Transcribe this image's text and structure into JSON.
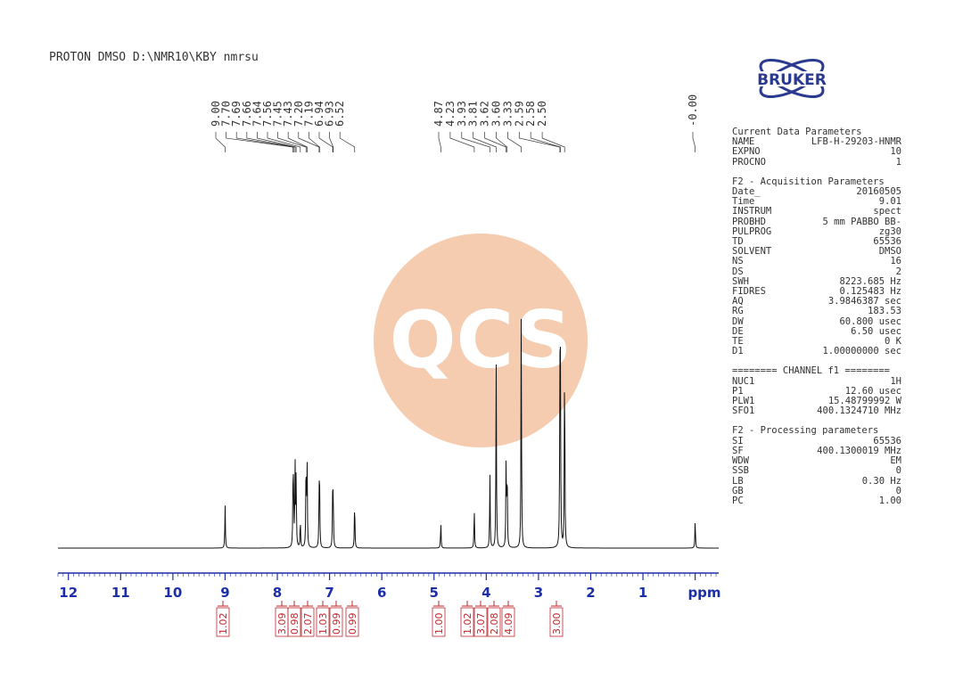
{
  "header": {
    "title": "PROTON DMSO D:\\NMR10\\KBY nmrsu"
  },
  "watermark": {
    "text": "QCS",
    "color": "#f4c7a6"
  },
  "logo": {
    "text": "BRUKER",
    "color": "#2a3a8f"
  },
  "chart_data": {
    "type": "line",
    "title": "",
    "xlabel": "ppm",
    "ylabel": "",
    "xlim": [
      12.2,
      -0.45
    ],
    "x_ticks": [
      12,
      11,
      10,
      9,
      8,
      7,
      6,
      5,
      4,
      3,
      2,
      1
    ],
    "tick_color": "#1b2fa8",
    "integral_color": "#c0282d",
    "peaks": [
      {
        "ppm": 9.0,
        "height": 0.15
      },
      {
        "ppm": 7.7,
        "height": 0.18
      },
      {
        "ppm": 7.69,
        "height": 0.21
      },
      {
        "ppm": 7.66,
        "height": 0.28
      },
      {
        "ppm": 7.64,
        "height": 0.25
      },
      {
        "ppm": 7.56,
        "height": 0.1
      },
      {
        "ppm": 7.45,
        "height": 0.32
      },
      {
        "ppm": 7.43,
        "height": 0.29
      },
      {
        "ppm": 7.2,
        "height": 0.19
      },
      {
        "ppm": 7.19,
        "height": 0.17
      },
      {
        "ppm": 6.94,
        "height": 0.18
      },
      {
        "ppm": 6.93,
        "height": 0.16
      },
      {
        "ppm": 6.52,
        "height": 0.17
      },
      {
        "ppm": 4.87,
        "height": 0.09
      },
      {
        "ppm": 4.23,
        "height": 0.14
      },
      {
        "ppm": 3.93,
        "height": 0.26
      },
      {
        "ppm": 3.81,
        "height": 0.64
      },
      {
        "ppm": 3.62,
        "height": 0.3
      },
      {
        "ppm": 3.6,
        "height": 0.28
      },
      {
        "ppm": 3.33,
        "height": 0.83
      },
      {
        "ppm": 2.59,
        "height": 0.52
      },
      {
        "ppm": 2.58,
        "height": 0.55
      },
      {
        "ppm": 2.5,
        "height": 0.7
      },
      {
        "ppm": 0.0,
        "height": 0.1
      }
    ],
    "peak_labels": [
      "9.00",
      "7.70",
      "7.69",
      "7.66",
      "7.64",
      "7.56",
      "7.45",
      "7.43",
      "7.20",
      "7.19",
      "6.94",
      "6.93",
      "6.52",
      "4.87",
      "4.23",
      "3.93",
      "3.81",
      "3.62",
      "3.60",
      "3.33",
      "2.59",
      "2.58",
      "2.50",
      "-0.00"
    ],
    "integrals": [
      {
        "ppm": 9.0,
        "value": "1.02"
      },
      {
        "ppm": 7.68,
        "value": "3.09"
      },
      {
        "ppm": 7.56,
        "value": "0.98"
      },
      {
        "ppm": 7.44,
        "value": "2.07"
      },
      {
        "ppm": 7.2,
        "value": "1.03"
      },
      {
        "ppm": 6.93,
        "value": "0.99"
      },
      {
        "ppm": 6.52,
        "value": "0.99"
      },
      {
        "ppm": 4.87,
        "value": "1.00"
      },
      {
        "ppm": 4.23,
        "value": "1.02"
      },
      {
        "ppm": 3.93,
        "value": "3.07"
      },
      {
        "ppm": 3.81,
        "value": "2.08"
      },
      {
        "ppm": 3.61,
        "value": "4.09"
      },
      {
        "ppm": 2.58,
        "value": "3.00"
      }
    ]
  },
  "parameters": {
    "current": {
      "title": "Current Data Parameters",
      "rows": [
        {
          "k": "NAME",
          "v": "LFB-H-29203-HNMR"
        },
        {
          "k": "EXPNO",
          "v": "10"
        },
        {
          "k": "PROCNO",
          "v": "1"
        }
      ]
    },
    "acquisition": {
      "title": "F2 - Acquisition Parameters",
      "rows": [
        {
          "k": "Date_",
          "v": "20160505"
        },
        {
          "k": "Time",
          "v": "9.01"
        },
        {
          "k": "INSTRUM",
          "v": "spect"
        },
        {
          "k": "PROBHD",
          "v": "5 mm PABBO BB-"
        },
        {
          "k": "PULPROG",
          "v": "zg30"
        },
        {
          "k": "TD",
          "v": "65536"
        },
        {
          "k": "SOLVENT",
          "v": "DMSO"
        },
        {
          "k": "NS",
          "v": "16"
        },
        {
          "k": "DS",
          "v": "2"
        },
        {
          "k": "SWH",
          "v": "8223.685 Hz"
        },
        {
          "k": "FIDRES",
          "v": "0.125483 Hz"
        },
        {
          "k": "AQ",
          "v": "3.9846387 sec"
        },
        {
          "k": "RG",
          "v": "183.53"
        },
        {
          "k": "DW",
          "v": "60.800 usec"
        },
        {
          "k": "DE",
          "v": "6.50 usec"
        },
        {
          "k": "TE",
          "v": "0 K"
        },
        {
          "k": "D1",
          "v": "1.00000000 sec"
        }
      ]
    },
    "channel": {
      "title": "======== CHANNEL f1 ========",
      "rows": [
        {
          "k": "NUC1",
          "v": "1H"
        },
        {
          "k": "P1",
          "v": "12.60 usec"
        },
        {
          "k": "PLW1",
          "v": "15.48799992 W"
        },
        {
          "k": "SFO1",
          "v": "400.1324710 MHz"
        }
      ]
    },
    "processing": {
      "title": "F2 - Processing parameters",
      "rows": [
        {
          "k": "SI",
          "v": "65536"
        },
        {
          "k": "SF",
          "v": "400.1300019 MHz"
        },
        {
          "k": "WDW",
          "v": "EM"
        },
        {
          "k": "SSB",
          "v": "0"
        },
        {
          "k": "LB",
          "v": "0.30 Hz"
        },
        {
          "k": "GB",
          "v": "0"
        },
        {
          "k": "PC",
          "v": "1.00"
        }
      ]
    }
  }
}
